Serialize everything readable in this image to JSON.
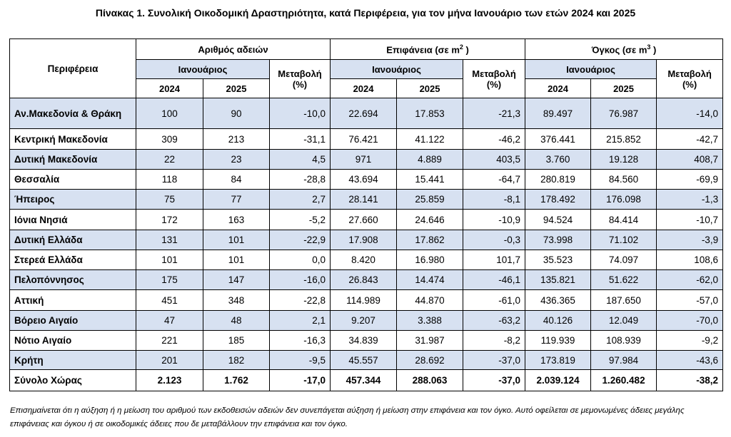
{
  "title": "Πίνακας 1. Συνολική Οικοδομική Δραστηριότητα, κατά  Περιφέρεια, για τον μήνα Ιανουάριο των ετών 2024 και 2025",
  "headers": {
    "region": "Περιφέρεια",
    "permits": "Αριθμός αδειών",
    "surface": "Επιφάνεια (σε m",
    "surface_sup": "2",
    "surface_tail": " )",
    "volume": "Όγκος (σε m",
    "volume_sup": "3",
    "volume_tail": " )",
    "january": "Ιανουάριος",
    "change_line1": "Μεταβολή",
    "change_line2": "(%)",
    "year1": "2024",
    "year2": "2025"
  },
  "rows": [
    {
      "region": "Αν.Μακεδονία & Θράκη",
      "p24": "100",
      "p25": "90",
      "pch": "-10,0",
      "s24": "22.694",
      "s25": "17.853",
      "sch": "-21,3",
      "v24": "89.497",
      "v25": "76.987",
      "vch": "-14,0"
    },
    {
      "region": "Κεντρική Μακεδονία",
      "p24": "309",
      "p25": "213",
      "pch": "-31,1",
      "s24": "76.421",
      "s25": "41.122",
      "sch": "-46,2",
      "v24": "376.441",
      "v25": "215.852",
      "vch": "-42,7"
    },
    {
      "region": "Δυτική Μακεδονία",
      "p24": "22",
      "p25": "23",
      "pch": "4,5",
      "s24": "971",
      "s25": "4.889",
      "sch": "403,5",
      "v24": "3.760",
      "v25": "19.128",
      "vch": "408,7"
    },
    {
      "region": "Θεσσαλία",
      "p24": "118",
      "p25": "84",
      "pch": "-28,8",
      "s24": "43.694",
      "s25": "15.441",
      "sch": "-64,7",
      "v24": "280.819",
      "v25": "84.560",
      "vch": "-69,9"
    },
    {
      "region": "Ήπειρος",
      "p24": "75",
      "p25": "77",
      "pch": "2,7",
      "s24": "28.141",
      "s25": "25.859",
      "sch": "-8,1",
      "v24": "178.492",
      "v25": "176.098",
      "vch": "-1,3"
    },
    {
      "region": "Ιόνια Νησιά",
      "p24": "172",
      "p25": "163",
      "pch": "-5,2",
      "s24": "27.660",
      "s25": "24.646",
      "sch": "-10,9",
      "v24": "94.524",
      "v25": "84.414",
      "vch": "-10,7"
    },
    {
      "region": "Δυτική Ελλάδα",
      "p24": "131",
      "p25": "101",
      "pch": "-22,9",
      "s24": "17.908",
      "s25": "17.862",
      "sch": "-0,3",
      "v24": "73.998",
      "v25": "71.102",
      "vch": "-3,9"
    },
    {
      "region": "Στερεά Ελλάδα",
      "p24": "101",
      "p25": "101",
      "pch": "0,0",
      "s24": "8.420",
      "s25": "16.980",
      "sch": "101,7",
      "v24": "35.523",
      "v25": "74.097",
      "vch": "108,6"
    },
    {
      "region": "Πελοπόννησος",
      "p24": "175",
      "p25": "147",
      "pch": "-16,0",
      "s24": "26.843",
      "s25": "14.474",
      "sch": "-46,1",
      "v24": "135.821",
      "v25": "51.622",
      "vch": "-62,0"
    },
    {
      "region": "Αττική",
      "p24": "451",
      "p25": "348",
      "pch": "-22,8",
      "s24": "114.989",
      "s25": "44.870",
      "sch": "-61,0",
      "v24": "436.365",
      "v25": "187.650",
      "vch": "-57,0"
    },
    {
      "region": "Βόρειο Αιγαίο",
      "p24": "47",
      "p25": "48",
      "pch": "2,1",
      "s24": "9.207",
      "s25": "3.388",
      "sch": "-63,2",
      "v24": "40.126",
      "v25": "12.049",
      "vch": "-70,0"
    },
    {
      "region": "Νότιο Αιγαίο",
      "p24": "221",
      "p25": "185",
      "pch": "-16,3",
      "s24": "34.839",
      "s25": "31.987",
      "sch": "-8,2",
      "v24": "119.939",
      "v25": "108.939",
      "vch": "-9,2"
    },
    {
      "region": "Κρήτη",
      "p24": "201",
      "p25": "182",
      "pch": "-9,5",
      "s24": "45.557",
      "s25": "28.692",
      "sch": "-37,0",
      "v24": "173.819",
      "v25": "97.984",
      "vch": "-43,6"
    }
  ],
  "total": {
    "region": "Σύνολο Χώρας",
    "p24": "2.123",
    "p25": "1.762",
    "pch": "-17,0",
    "s24": "457.344",
    "s25": "288.063",
    "sch": "-37,0",
    "v24": "2.039.124",
    "v25": "1.260.482",
    "vch": "-38,2"
  },
  "note": "Επισημαίνεται ότι η αύξηση ή η μείωση του αριθμού των εκδοθεισών αδειών δεν συνεπάγεται αύξηση ή μείωση στην επιφάνεια και τον όγκο. Αυτό οφείλεται σε μεμονωμένες άδειες μεγάλης επιφάνειας και όγκου ή σε οικοδομικές άδειες που δε μεταβάλλουν την επιφάνεια και τον όγκο.",
  "colors": {
    "shade": "#d7e1f1",
    "border": "#000000"
  }
}
